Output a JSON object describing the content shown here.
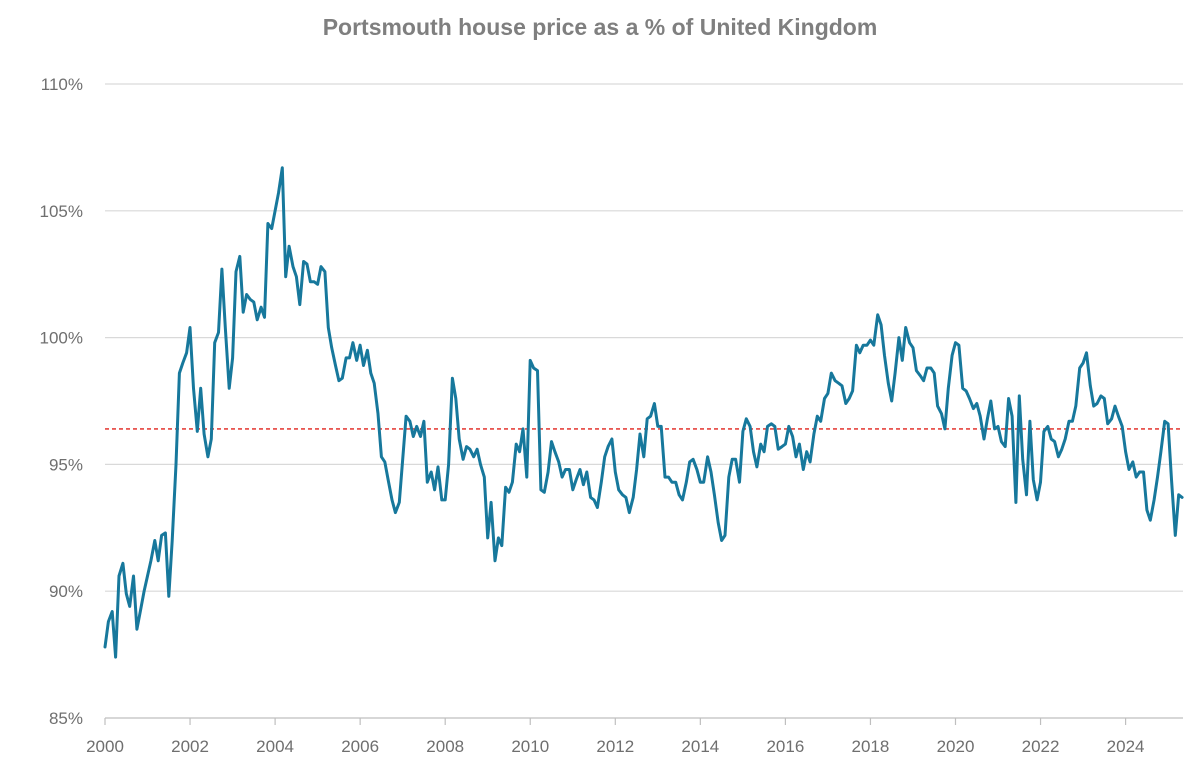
{
  "chart_data": {
    "type": "line",
    "title": "Portsmouth house price as a % of United Kingdom",
    "xlabel": "",
    "ylabel": "",
    "xlim": [
      2000,
      2025.35
    ],
    "ylim": [
      85,
      110
    ],
    "grid": true,
    "x_ticks": [
      2000,
      2002,
      2004,
      2006,
      2008,
      2010,
      2012,
      2014,
      2016,
      2018,
      2020,
      2022,
      2024
    ],
    "x_tick_labels": [
      "2000",
      "2002",
      "2004",
      "2006",
      "2008",
      "2010",
      "2012",
      "2014",
      "2016",
      "2018",
      "2020",
      "2022",
      "2024"
    ],
    "y_ticks": [
      85,
      90,
      95,
      100,
      105,
      110
    ],
    "y_tick_labels": [
      "85%",
      "90%",
      "95%",
      "100%",
      "105%",
      "110%"
    ],
    "reference_line": {
      "value": 96.4,
      "style": "dashed",
      "color": "#e0201a"
    },
    "series": [
      {
        "name": "Portsmouth house price as % of UK",
        "color": "#17789c",
        "x": [
          2000.0,
          2000.08,
          2000.17,
          2000.25,
          2000.33,
          2000.42,
          2000.5,
          2000.58,
          2000.67,
          2000.75,
          2000.83,
          2000.92,
          2001.0,
          2001.08,
          2001.17,
          2001.25,
          2001.33,
          2001.42,
          2001.5,
          2001.58,
          2001.67,
          2001.75,
          2001.83,
          2001.92,
          2002.0,
          2002.08,
          2002.17,
          2002.25,
          2002.33,
          2002.42,
          2002.5,
          2002.58,
          2002.67,
          2002.75,
          2002.83,
          2002.92,
          2003.0,
          2003.08,
          2003.17,
          2003.25,
          2003.33,
          2003.42,
          2003.5,
          2003.58,
          2003.67,
          2003.75,
          2003.83,
          2003.92,
          2004.0,
          2004.08,
          2004.17,
          2004.25,
          2004.33,
          2004.42,
          2004.5,
          2004.58,
          2004.67,
          2004.75,
          2004.83,
          2004.92,
          2005.0,
          2005.08,
          2005.17,
          2005.25,
          2005.33,
          2005.42,
          2005.5,
          2005.58,
          2005.67,
          2005.75,
          2005.83,
          2005.92,
          2006.0,
          2006.08,
          2006.17,
          2006.25,
          2006.33,
          2006.42,
          2006.5,
          2006.58,
          2006.67,
          2006.75,
          2006.83,
          2006.92,
          2007.0,
          2007.08,
          2007.17,
          2007.25,
          2007.33,
          2007.42,
          2007.5,
          2007.58,
          2007.67,
          2007.75,
          2007.83,
          2007.92,
          2008.0,
          2008.08,
          2008.17,
          2008.25,
          2008.33,
          2008.42,
          2008.5,
          2008.58,
          2008.67,
          2008.75,
          2008.83,
          2008.92,
          2009.0,
          2009.08,
          2009.17,
          2009.25,
          2009.33,
          2009.42,
          2009.5,
          2009.58,
          2009.67,
          2009.75,
          2009.83,
          2009.92,
          2010.0,
          2010.08,
          2010.17,
          2010.25,
          2010.33,
          2010.42,
          2010.5,
          2010.58,
          2010.67,
          2010.75,
          2010.83,
          2010.92,
          2011.0,
          2011.08,
          2011.17,
          2011.25,
          2011.33,
          2011.42,
          2011.5,
          2011.58,
          2011.67,
          2011.75,
          2011.83,
          2011.92,
          2012.0,
          2012.08,
          2012.17,
          2012.25,
          2012.33,
          2012.42,
          2012.5,
          2012.58,
          2012.67,
          2012.75,
          2012.83,
          2012.92,
          2013.0,
          2013.08,
          2013.17,
          2013.25,
          2013.33,
          2013.42,
          2013.5,
          2013.58,
          2013.67,
          2013.75,
          2013.83,
          2013.92,
          2014.0,
          2014.08,
          2014.17,
          2014.25,
          2014.33,
          2014.42,
          2014.5,
          2014.58,
          2014.67,
          2014.75,
          2014.83,
          2014.92,
          2015.0,
          2015.08,
          2015.17,
          2015.25,
          2015.33,
          2015.42,
          2015.5,
          2015.58,
          2015.67,
          2015.75,
          2015.83,
          2015.92,
          2016.0,
          2016.08,
          2016.17,
          2016.25,
          2016.33,
          2016.42,
          2016.5,
          2016.58,
          2016.67,
          2016.75,
          2016.83,
          2016.92,
          2017.0,
          2017.08,
          2017.17,
          2017.25,
          2017.33,
          2017.42,
          2017.5,
          2017.58,
          2017.67,
          2017.75,
          2017.83,
          2017.92,
          2018.0,
          2018.08,
          2018.17,
          2018.25,
          2018.33,
          2018.42,
          2018.5,
          2018.58,
          2018.67,
          2018.75,
          2018.83,
          2018.92,
          2019.0,
          2019.08,
          2019.17,
          2019.25,
          2019.33,
          2019.42,
          2019.5,
          2019.58,
          2019.67,
          2019.75,
          2019.83,
          2019.92,
          2020.0,
          2020.08,
          2020.17,
          2020.25,
          2020.33,
          2020.42,
          2020.5,
          2020.58,
          2020.67,
          2020.75,
          2020.83,
          2020.92,
          2021.0,
          2021.08,
          2021.17,
          2021.25,
          2021.33,
          2021.42,
          2021.5,
          2021.58,
          2021.67,
          2021.75,
          2021.83,
          2021.92,
          2022.0,
          2022.08,
          2022.17,
          2022.25,
          2022.33,
          2022.42,
          2022.5,
          2022.58,
          2022.67,
          2022.75,
          2022.83,
          2022.92,
          2023.0,
          2023.08,
          2023.17,
          2023.25,
          2023.33,
          2023.42,
          2023.5,
          2023.58,
          2023.67,
          2023.75,
          2023.83,
          2023.92,
          2024.0,
          2024.08,
          2024.17,
          2024.25,
          2024.33,
          2024.42,
          2024.5,
          2024.58,
          2024.67,
          2024.75,
          2024.83,
          2024.92,
          2025.0,
          2025.08,
          2025.17,
          2025.25,
          2025.33
        ],
        "values": [
          87.8,
          88.8,
          89.2,
          87.4,
          90.6,
          91.1,
          89.9,
          89.4,
          90.6,
          88.5,
          89.2,
          90.0,
          90.6,
          91.2,
          92.0,
          91.2,
          92.2,
          92.3,
          89.8,
          92.0,
          95.0,
          98.6,
          99.0,
          99.4,
          100.4,
          98.0,
          96.3,
          98.0,
          96.2,
          95.3,
          96.0,
          99.8,
          100.2,
          102.7,
          100.4,
          98.0,
          99.2,
          102.6,
          103.2,
          101.0,
          101.7,
          101.5,
          101.4,
          100.7,
          101.2,
          100.8,
          104.5,
          104.3,
          105.0,
          105.7,
          106.7,
          102.4,
          103.6,
          102.8,
          102.4,
          101.3,
          103.0,
          102.9,
          102.2,
          102.2,
          102.1,
          102.8,
          102.6,
          100.4,
          99.6,
          98.9,
          98.3,
          98.4,
          99.2,
          99.2,
          99.8,
          99.1,
          99.7,
          98.9,
          99.5,
          98.6,
          98.2,
          97.0,
          95.3,
          95.1,
          94.3,
          93.6,
          93.1,
          93.5,
          95.2,
          96.9,
          96.7,
          96.1,
          96.5,
          96.1,
          96.7,
          94.3,
          94.7,
          94.0,
          94.9,
          93.6,
          93.6,
          95.0,
          98.4,
          97.6,
          96.0,
          95.2,
          95.7,
          95.6,
          95.3,
          95.6,
          95.0,
          94.5,
          92.1,
          93.5,
          91.2,
          92.1,
          91.8,
          94.1,
          93.9,
          94.3,
          95.8,
          95.5,
          96.4,
          94.5,
          99.1,
          98.8,
          98.7,
          94.0,
          93.9,
          94.7,
          95.9,
          95.5,
          95.1,
          94.5,
          94.8,
          94.8,
          94.0,
          94.4,
          94.8,
          94.2,
          94.7,
          93.7,
          93.6,
          93.3,
          94.3,
          95.3,
          95.7,
          96.0,
          94.7,
          94.0,
          93.8,
          93.7,
          93.1,
          93.7,
          94.8,
          96.2,
          95.3,
          96.8,
          96.9,
          97.4,
          96.5,
          96.5,
          94.5,
          94.5,
          94.3,
          94.3,
          93.8,
          93.6,
          94.3,
          95.1,
          95.2,
          94.8,
          94.3,
          94.3,
          95.3,
          94.7,
          93.8,
          92.7,
          92.0,
          92.2,
          94.5,
          95.2,
          95.2,
          94.3,
          96.3,
          96.8,
          96.5,
          95.5,
          94.9,
          95.8,
          95.5,
          96.5,
          96.6,
          96.5,
          95.6,
          95.7,
          95.8,
          96.5,
          96.1,
          95.3,
          95.8,
          94.8,
          95.5,
          95.1,
          96.2,
          96.9,
          96.7,
          97.6,
          97.8,
          98.6,
          98.3,
          98.2,
          98.1,
          97.4,
          97.6,
          97.9,
          99.7,
          99.4,
          99.7,
          99.7,
          99.9,
          99.7,
          100.9,
          100.5,
          99.3,
          98.2,
          97.5,
          98.6,
          100.0,
          99.1,
          100.4,
          99.8,
          99.6,
          98.7,
          98.5,
          98.3,
          98.8,
          98.8,
          98.6,
          97.3,
          97.0,
          96.4,
          98.0,
          99.3,
          99.8,
          99.7,
          98.0,
          97.9,
          97.6,
          97.2,
          97.4,
          96.9,
          96.0,
          96.8,
          97.5,
          96.4,
          96.5,
          95.9,
          95.7,
          97.6,
          96.9,
          93.5,
          97.7,
          95.2,
          93.8,
          96.7,
          94.4,
          93.6,
          94.3,
          96.3,
          96.5,
          96.0,
          95.9,
          95.3,
          95.6,
          96.0,
          96.7,
          96.7,
          97.3,
          98.8,
          99.0,
          99.4,
          98.1,
          97.3,
          97.4,
          97.7,
          97.6,
          96.6,
          96.8,
          97.3,
          96.9,
          96.5,
          95.5,
          94.8,
          95.1,
          94.5,
          94.7,
          94.7,
          93.2,
          92.8,
          93.6,
          94.5,
          95.5,
          96.7,
          96.6,
          94.4,
          92.2,
          93.8,
          93.7
        ]
      }
    ]
  }
}
